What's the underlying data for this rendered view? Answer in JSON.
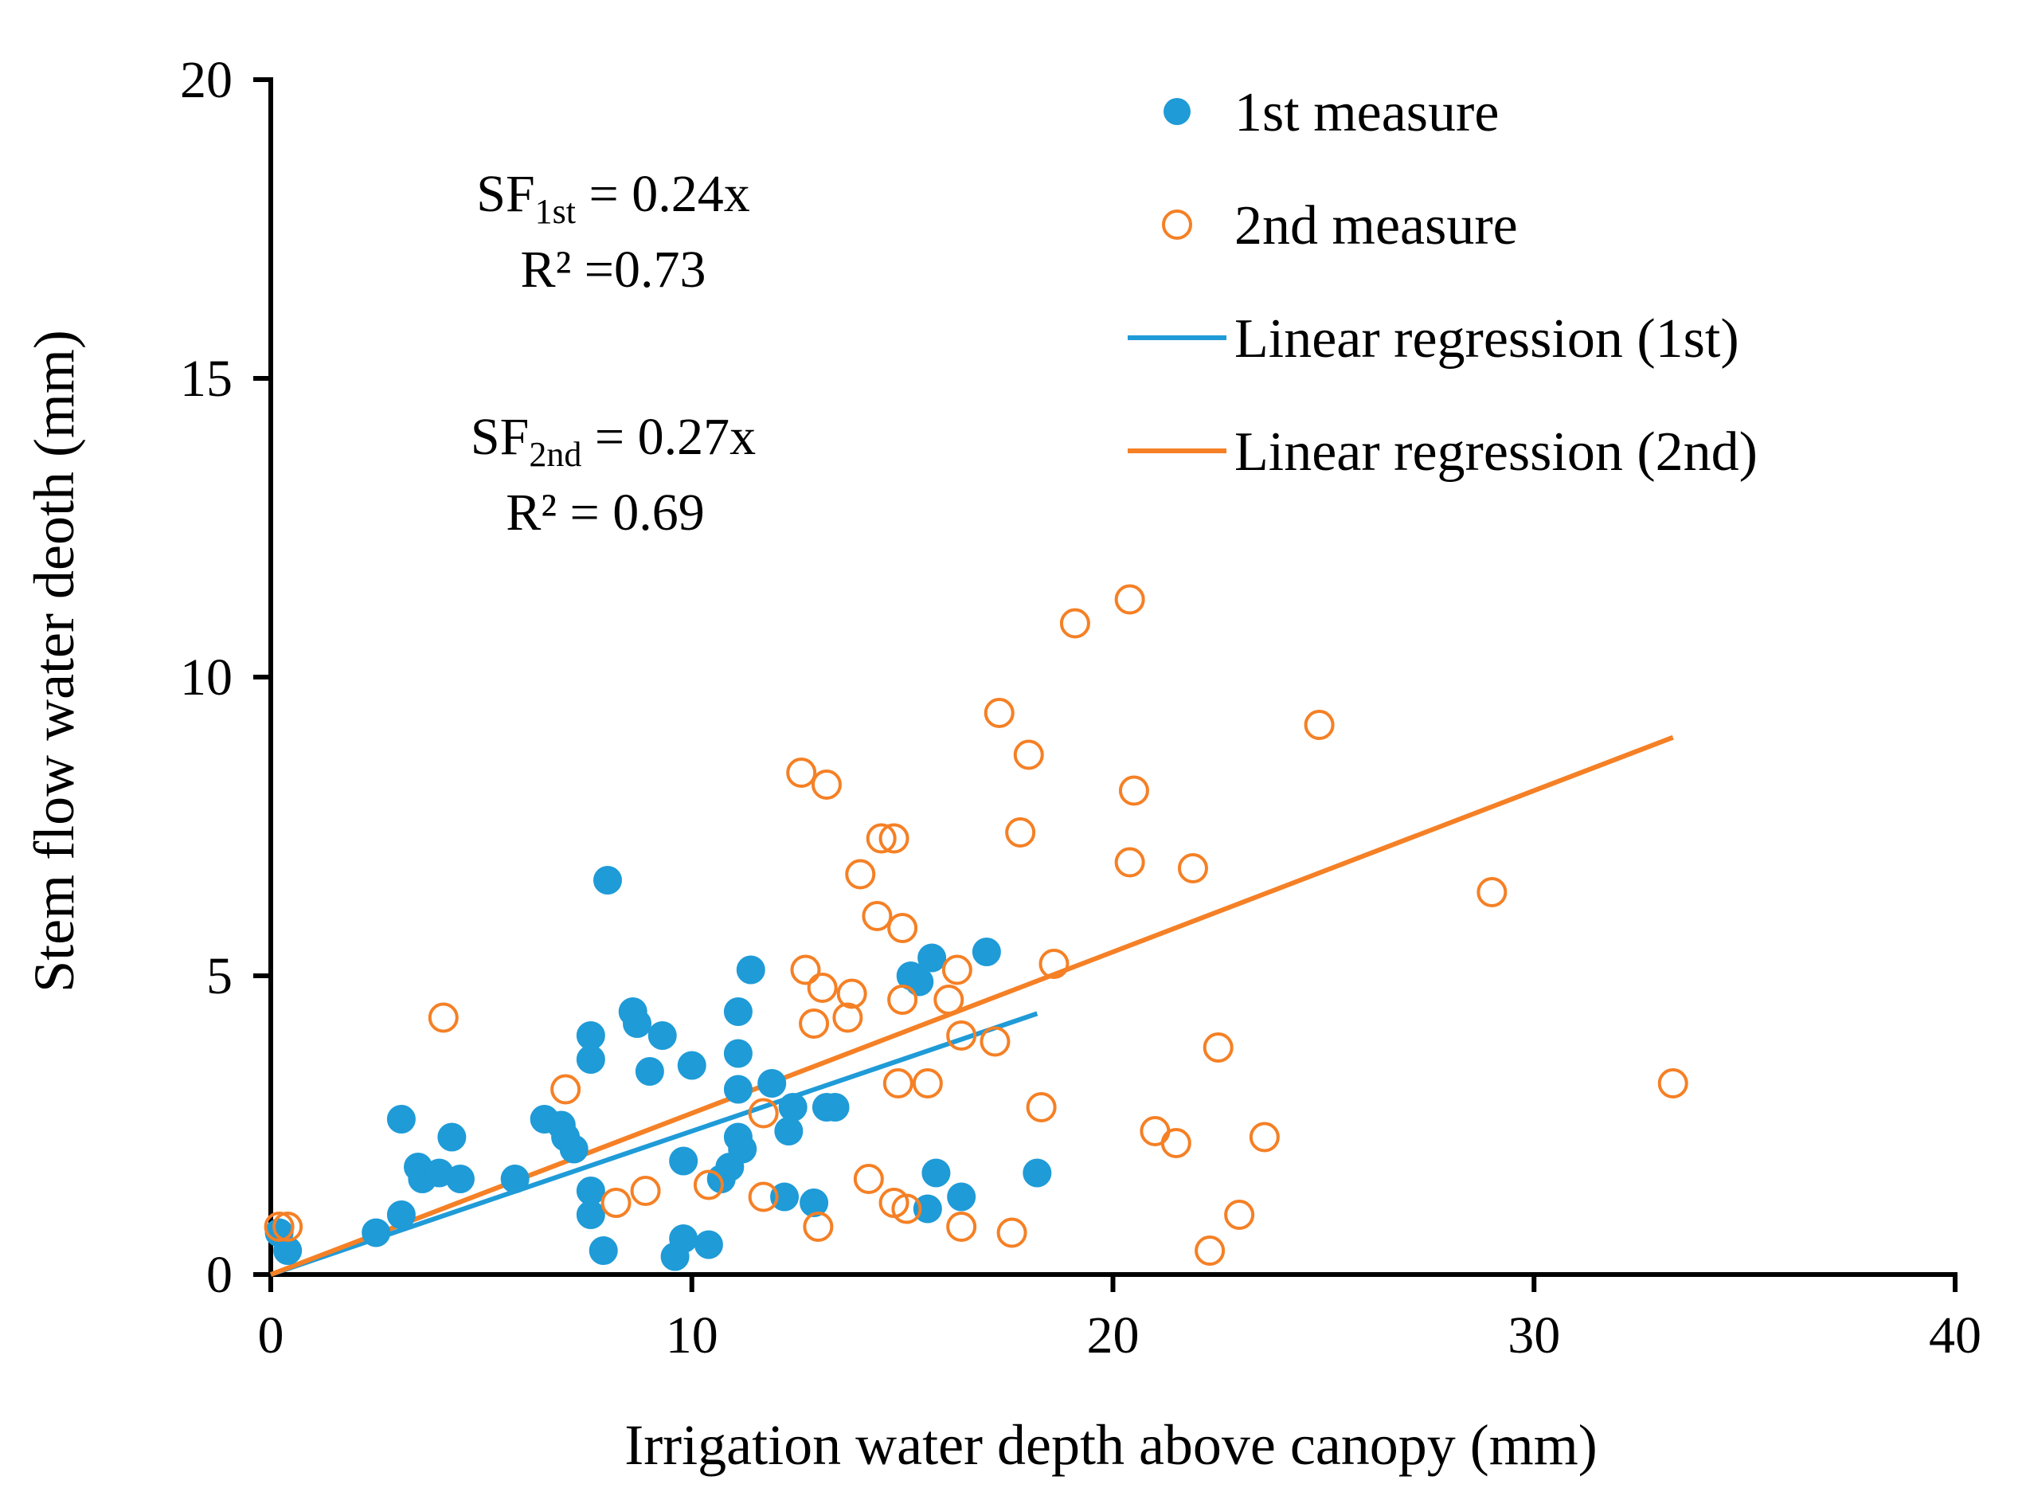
{
  "chart_data": {
    "type": "scatter",
    "title": "",
    "xlabel": "Irrigation water depth above canopy (mm)",
    "ylabel": "Stem flow water deoth (mm)",
    "xlim": [
      0,
      40
    ],
    "ylim": [
      0,
      20
    ],
    "xticks": [
      "0",
      "10",
      "20",
      "30",
      "40"
    ],
    "yticks": [
      "0",
      "5",
      "10",
      "15",
      "20"
    ],
    "grid": false,
    "legend_position": "top-right",
    "colors": {
      "first": "#1f9bd7",
      "second": "#f58025",
      "axis": "#000000"
    },
    "legend": [
      {
        "label": "1st measure",
        "kind": "filled-circle",
        "color": "#1f9bd7"
      },
      {
        "label": "2nd measure",
        "kind": "open-circle",
        "color": "#f58025"
      },
      {
        "label": "Linear regression (1st)",
        "kind": "line",
        "color": "#1f9bd7"
      },
      {
        "label": "Linear regression (2nd)",
        "kind": "line",
        "color": "#f58025"
      }
    ],
    "annotations": {
      "first": {
        "sf": "SF",
        "sub": "1st",
        "eq": " = 0.24x",
        "r2": "R² =0.73"
      },
      "second": {
        "sf": "SF",
        "sub": "2nd",
        "eq": " = 0.27x",
        "r2": "R² = 0.69"
      }
    },
    "series": [
      {
        "name": "1st measure",
        "marker": "filled",
        "color": "#1f9bd7",
        "points": [
          [
            0.2,
            0.7
          ],
          [
            0.4,
            0.4
          ],
          [
            2.5,
            0.7
          ],
          [
            3.1,
            2.6
          ],
          [
            3.1,
            1.0
          ],
          [
            3.5,
            1.8
          ],
          [
            3.6,
            1.6
          ],
          [
            4.0,
            1.7
          ],
          [
            4.3,
            2.3
          ],
          [
            4.5,
            1.6
          ],
          [
            5.8,
            1.6
          ],
          [
            6.5,
            2.6
          ],
          [
            6.9,
            2.5
          ],
          [
            7.0,
            2.3
          ],
          [
            7.2,
            2.1
          ],
          [
            7.6,
            4.0
          ],
          [
            7.6,
            3.6
          ],
          [
            7.6,
            1.4
          ],
          [
            7.6,
            1.0
          ],
          [
            7.9,
            0.4
          ],
          [
            8.0,
            6.6
          ],
          [
            8.6,
            4.4
          ],
          [
            8.7,
            4.2
          ],
          [
            9.0,
            3.4
          ],
          [
            9.3,
            4.0
          ],
          [
            9.6,
            0.3
          ],
          [
            9.8,
            0.6
          ],
          [
            9.8,
            1.9
          ],
          [
            10.0,
            3.5
          ],
          [
            10.4,
            0.5
          ],
          [
            10.7,
            1.6
          ],
          [
            10.9,
            1.8
          ],
          [
            11.1,
            4.4
          ],
          [
            11.1,
            3.7
          ],
          [
            11.1,
            3.1
          ],
          [
            11.1,
            2.3
          ],
          [
            11.2,
            2.1
          ],
          [
            11.4,
            5.1
          ],
          [
            11.9,
            3.2
          ],
          [
            12.2,
            1.3
          ],
          [
            12.3,
            2.4
          ],
          [
            12.4,
            2.8
          ],
          [
            12.9,
            1.2
          ],
          [
            13.2,
            2.8
          ],
          [
            13.4,
            2.8
          ],
          [
            15.2,
            5.0
          ],
          [
            15.4,
            4.9
          ],
          [
            15.6,
            1.1
          ],
          [
            15.7,
            5.3
          ],
          [
            15.8,
            1.7
          ],
          [
            16.4,
            1.3
          ],
          [
            17.0,
            5.4
          ],
          [
            18.2,
            1.7
          ]
        ]
      },
      {
        "name": "2nd measure",
        "marker": "open",
        "color": "#f58025",
        "points": [
          [
            0.2,
            0.8
          ],
          [
            0.4,
            0.8
          ],
          [
            4.1,
            4.3
          ],
          [
            7.0,
            3.1
          ],
          [
            8.2,
            1.2
          ],
          [
            8.9,
            1.4
          ],
          [
            10.4,
            1.5
          ],
          [
            11.7,
            2.7
          ],
          [
            11.7,
            1.3
          ],
          [
            12.6,
            8.4
          ],
          [
            12.7,
            5.1
          ],
          [
            12.9,
            4.2
          ],
          [
            13.1,
            4.8
          ],
          [
            13.0,
            0.8
          ],
          [
            13.2,
            8.2
          ],
          [
            13.7,
            4.3
          ],
          [
            13.8,
            4.7
          ],
          [
            14.0,
            6.7
          ],
          [
            14.2,
            1.6
          ],
          [
            14.4,
            6.0
          ],
          [
            14.5,
            7.3
          ],
          [
            14.8,
            7.3
          ],
          [
            14.8,
            1.2
          ],
          [
            14.9,
            3.2
          ],
          [
            15.0,
            4.6
          ],
          [
            15.0,
            5.8
          ],
          [
            15.1,
            1.1
          ],
          [
            15.6,
            3.2
          ],
          [
            16.1,
            4.6
          ],
          [
            16.3,
            5.1
          ],
          [
            16.4,
            4.0
          ],
          [
            16.4,
            0.8
          ],
          [
            17.2,
            3.9
          ],
          [
            17.3,
            9.4
          ],
          [
            17.6,
            0.7
          ],
          [
            17.8,
            7.4
          ],
          [
            18.0,
            8.7
          ],
          [
            18.3,
            2.8
          ],
          [
            18.6,
            5.2
          ],
          [
            19.1,
            10.9
          ],
          [
            20.4,
            11.3
          ],
          [
            20.4,
            6.9
          ],
          [
            20.5,
            8.1
          ],
          [
            21.0,
            2.4
          ],
          [
            21.5,
            2.2
          ],
          [
            21.9,
            6.8
          ],
          [
            22.3,
            0.4
          ],
          [
            22.5,
            3.8
          ],
          [
            23.0,
            1.0
          ],
          [
            23.6,
            2.3
          ],
          [
            24.9,
            9.2
          ],
          [
            29.0,
            6.4
          ],
          [
            33.3,
            3.2
          ]
        ]
      }
    ],
    "regressions": [
      {
        "name": "Linear regression (1st)",
        "color": "#1f9bd7",
        "slope": 0.24,
        "x_range": [
          0,
          18.2
        ]
      },
      {
        "name": "Linear regression (2nd)",
        "color": "#f58025",
        "slope": 0.27,
        "x_range": [
          0,
          33.3
        ]
      }
    ]
  }
}
